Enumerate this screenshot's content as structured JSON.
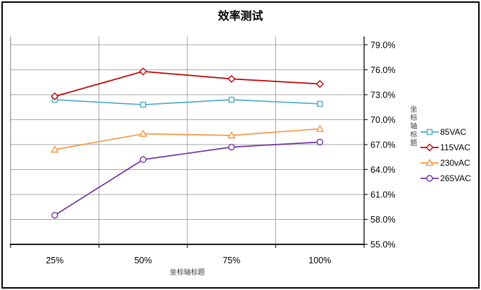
{
  "chart_data": {
    "type": "line",
    "title": "效率测试",
    "categories": [
      "25%",
      "50%",
      "75%",
      "100%"
    ],
    "xlabel": "坐标轴标题",
    "ylabel": "坐标轴标题",
    "y_ticks": [
      "79.0%",
      "76.0%",
      "73.0%",
      "70.0%",
      "67.0%",
      "64.0%",
      "61.0%",
      "58.0%",
      "55.0%"
    ],
    "ylim": [
      55,
      80
    ],
    "y_major_unit_pct": 3,
    "grid": true,
    "legend_position": "right",
    "series": [
      {
        "name": "85VAC",
        "marker": "square",
        "color": "#4BACC6",
        "values": [
          72.4,
          71.8,
          72.4,
          71.9
        ]
      },
      {
        "name": "115VAC",
        "marker": "diamond",
        "color": "#C00000",
        "values": [
          72.8,
          75.8,
          74.9,
          74.3
        ]
      },
      {
        "name": "230vAC",
        "marker": "triangle",
        "color": "#F79646",
        "values": [
          66.4,
          68.3,
          68.1,
          68.9
        ]
      },
      {
        "name": "265VAC",
        "marker": "circle",
        "color": "#7030A0",
        "values": [
          58.5,
          65.2,
          66.7,
          67.3
        ]
      }
    ]
  },
  "colors": {
    "gridline": "#A6A6A6",
    "plot_left_border": "#808080",
    "axis": "#1A1A1A",
    "text": "#000000",
    "axis_title_text": "#3F3F3F"
  }
}
